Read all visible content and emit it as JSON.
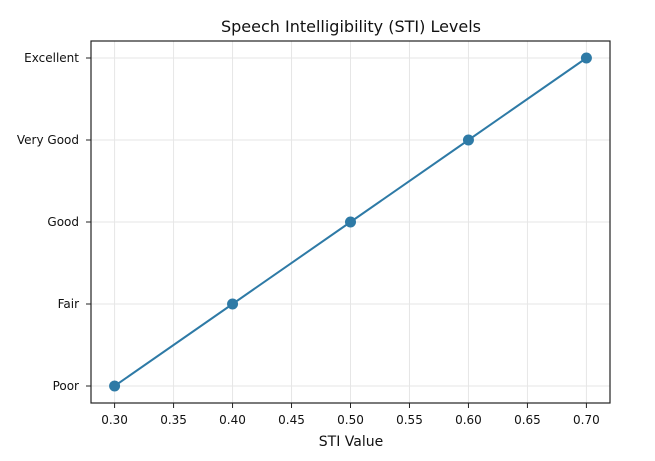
{
  "chart_data": {
    "type": "line",
    "title": "Speech Intelligibility (STI) Levels",
    "xlabel": "STI Value",
    "ylabel": "",
    "x": [
      0.3,
      0.4,
      0.5,
      0.6,
      0.7
    ],
    "categories": [
      "Poor",
      "Fair",
      "Good",
      "Very Good",
      "Excellent"
    ],
    "series": [
      {
        "values": [
          "Poor",
          "Fair",
          "Good",
          "Very Good",
          "Excellent"
        ],
        "color": "#2e7aa6",
        "marker": "circle"
      }
    ],
    "xticks": [
      "0.30",
      "0.35",
      "0.40",
      "0.45",
      "0.50",
      "0.55",
      "0.60",
      "0.65",
      "0.70"
    ],
    "xtick_values": [
      0.3,
      0.35,
      0.4,
      0.45,
      0.5,
      0.55,
      0.6,
      0.65,
      0.7
    ],
    "yticks": [
      "Poor",
      "Fair",
      "Good",
      "Very Good",
      "Excellent"
    ],
    "xlim": [
      0.28,
      0.72
    ],
    "grid": true
  }
}
